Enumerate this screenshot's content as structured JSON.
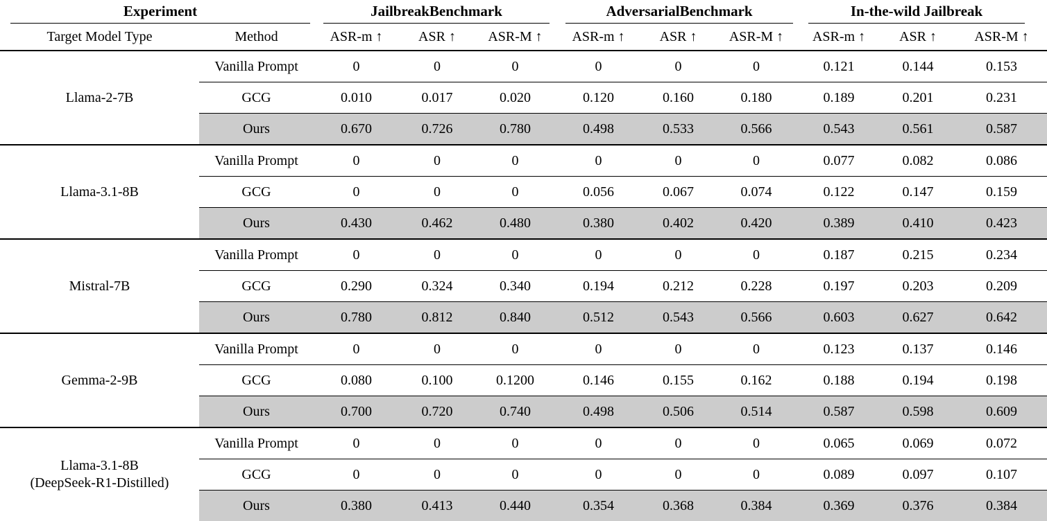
{
  "table": {
    "highlight_color": "#cccccc",
    "group_headers": [
      {
        "label": "Experiment"
      },
      {
        "label": "JailbreakBenchmark"
      },
      {
        "label": "AdversarialBenchmark"
      },
      {
        "label": "In-the-wild Jailbreak"
      }
    ],
    "column_headers": [
      "Target Model Type",
      "Method",
      "ASR-m ↑",
      "ASR ↑",
      "ASR-M ↑",
      "ASR-m ↑",
      "ASR ↑",
      "ASR-M ↑",
      "ASR-m ↑",
      "ASR ↑",
      "ASR-M ↑"
    ],
    "blocks": [
      {
        "model_lines": [
          "Llama-2-7B"
        ],
        "rows": [
          {
            "method": "Vanilla Prompt",
            "highlight": false,
            "values": [
              "0",
              "0",
              "0",
              "0",
              "0",
              "0",
              "0.121",
              "0.144",
              "0.153"
            ]
          },
          {
            "method": "GCG",
            "highlight": false,
            "values": [
              "0.010",
              "0.017",
              "0.020",
              "0.120",
              "0.160",
              "0.180",
              "0.189",
              "0.201",
              "0.231"
            ]
          },
          {
            "method": "Ours",
            "highlight": true,
            "values": [
              "0.670",
              "0.726",
              "0.780",
              "0.498",
              "0.533",
              "0.566",
              "0.543",
              "0.561",
              "0.587"
            ]
          }
        ]
      },
      {
        "model_lines": [
          "Llama-3.1-8B"
        ],
        "rows": [
          {
            "method": "Vanilla Prompt",
            "highlight": false,
            "values": [
              "0",
              "0",
              "0",
              "0",
              "0",
              "0",
              "0.077",
              "0.082",
              "0.086"
            ]
          },
          {
            "method": "GCG",
            "highlight": false,
            "values": [
              "0",
              "0",
              "0",
              "0.056",
              "0.067",
              "0.074",
              "0.122",
              "0.147",
              "0.159"
            ]
          },
          {
            "method": "Ours",
            "highlight": true,
            "values": [
              "0.430",
              "0.462",
              "0.480",
              "0.380",
              "0.402",
              "0.420",
              "0.389",
              "0.410",
              "0.423"
            ]
          }
        ]
      },
      {
        "model_lines": [
          "Mistral-7B"
        ],
        "rows": [
          {
            "method": "Vanilla Prompt",
            "highlight": false,
            "values": [
              "0",
              "0",
              "0",
              "0",
              "0",
              "0",
              "0.187",
              "0.215",
              "0.234"
            ]
          },
          {
            "method": "GCG",
            "highlight": false,
            "values": [
              "0.290",
              "0.324",
              "0.340",
              "0.194",
              "0.212",
              "0.228",
              "0.197",
              "0.203",
              "0.209"
            ]
          },
          {
            "method": "Ours",
            "highlight": true,
            "values": [
              "0.780",
              "0.812",
              "0.840",
              "0.512",
              "0.543",
              "0.566",
              "0.603",
              "0.627",
              "0.642"
            ]
          }
        ]
      },
      {
        "model_lines": [
          "Gemma-2-9B"
        ],
        "rows": [
          {
            "method": "Vanilla Prompt",
            "highlight": false,
            "values": [
              "0",
              "0",
              "0",
              "0",
              "0",
              "0",
              "0.123",
              "0.137",
              "0.146"
            ]
          },
          {
            "method": "GCG",
            "highlight": false,
            "values": [
              "0.080",
              "0.100",
              "0.1200",
              "0.146",
              "0.155",
              "0.162",
              "0.188",
              "0.194",
              "0.198"
            ]
          },
          {
            "method": "Ours",
            "highlight": true,
            "values": [
              "0.700",
              "0.720",
              "0.740",
              "0.498",
              "0.506",
              "0.514",
              "0.587",
              "0.598",
              "0.609"
            ]
          }
        ]
      },
      {
        "model_lines": [
          "Llama-3.1-8B",
          "(DeepSeek-R1-Distilled)"
        ],
        "rows": [
          {
            "method": "Vanilla Prompt",
            "highlight": false,
            "values": [
              "0",
              "0",
              "0",
              "0",
              "0",
              "0",
              "0.065",
              "0.069",
              "0.072"
            ]
          },
          {
            "method": "GCG",
            "highlight": false,
            "values": [
              "0",
              "0",
              "0",
              "0",
              "0",
              "0",
              "0.089",
              "0.097",
              "0.107"
            ]
          },
          {
            "method": "Ours",
            "highlight": true,
            "values": [
              "0.380",
              "0.413",
              "0.440",
              "0.354",
              "0.368",
              "0.384",
              "0.369",
              "0.376",
              "0.384"
            ]
          }
        ]
      }
    ]
  }
}
